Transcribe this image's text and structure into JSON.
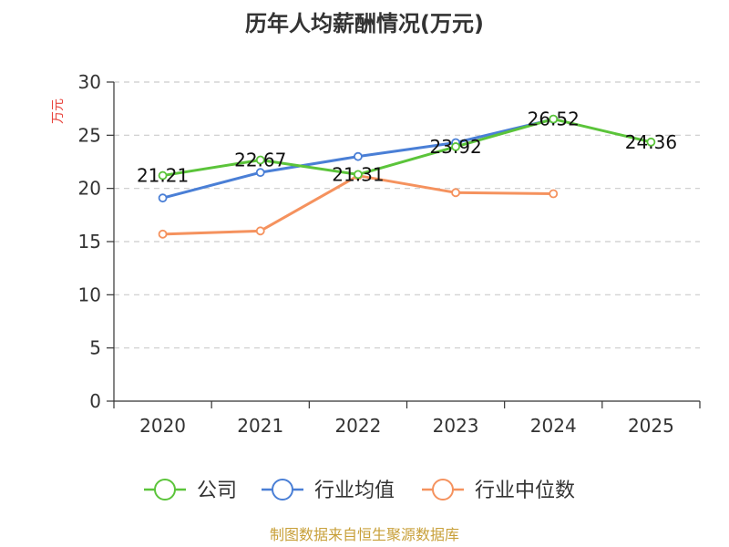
{
  "chart_data": {
    "type": "line",
    "title": "历年人均薪酬情况(万元)",
    "ylabel": "万元",
    "xlabel": "",
    "categories": [
      "2020",
      "2021",
      "2022",
      "2023",
      "2024",
      "2025"
    ],
    "ylim": [
      0,
      30
    ],
    "yticks": [
      0,
      5,
      10,
      15,
      20,
      25,
      30
    ],
    "grid": true,
    "legend_position": "bottom",
    "series": [
      {
        "name": "公司",
        "color": "#5bc43a",
        "values": [
          21.21,
          22.67,
          21.31,
          23.92,
          26.52,
          24.36
        ],
        "labels": [
          "21.21",
          "22.67",
          "21.31",
          "23.92",
          "26.52",
          "24.36"
        ]
      },
      {
        "name": "行业均值",
        "color": "#4a7fd6",
        "values": [
          19.1,
          21.5,
          23.0,
          24.3,
          26.5,
          null
        ]
      },
      {
        "name": "行业中位数",
        "color": "#f5925e",
        "values": [
          15.7,
          16.0,
          21.2,
          19.6,
          19.5,
          null
        ]
      }
    ]
  },
  "footer": {
    "source": "制图数据来自恒生聚源数据库"
  }
}
